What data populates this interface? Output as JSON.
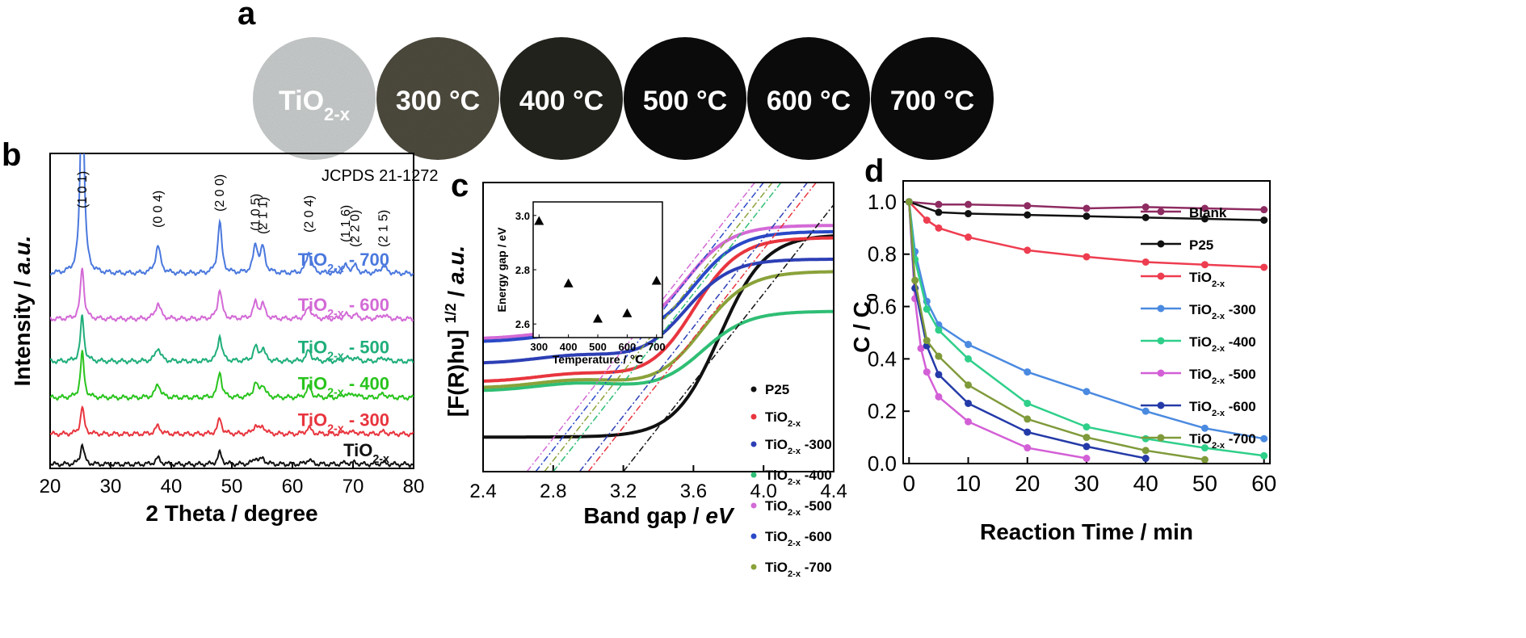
{
  "panel_a": {
    "letter": "a",
    "samples": [
      {
        "label": "TiO",
        "sub": "2-x",
        "color": "#c8cbcb"
      },
      {
        "label": "300 °C",
        "sub": "",
        "color": "#4d4a3d"
      },
      {
        "label": "400 °C",
        "sub": "",
        "color": "#22231c"
      },
      {
        "label": "500 °C",
        "sub": "",
        "color": "#0b0b0b"
      },
      {
        "label": "600 °C",
        "sub": "",
        "color": "#0b0b0b"
      },
      {
        "label": "700 °C",
        "sub": "",
        "color": "#0b0b0b"
      }
    ]
  },
  "chart_data": [
    {
      "panel": "b",
      "type": "line",
      "xlabel": "2 Theta / degree",
      "ylabel": "Intensity / a.u.",
      "xlim": [
        20,
        80
      ],
      "xticks": [
        20,
        30,
        40,
        50,
        60,
        70,
        80
      ],
      "reference": "JCPDS 21-1272",
      "peaks": [
        {
          "label": "(1 0 1)",
          "x": 25.3
        },
        {
          "label": "(0 0 4)",
          "x": 37.8
        },
        {
          "label": "(2 0 0)",
          "x": 48.0
        },
        {
          "label": "(1 0 5)",
          "x": 53.9
        },
        {
          "label": "(2 1 1)",
          "x": 55.1
        },
        {
          "label": "(2 0 4)",
          "x": 62.7
        },
        {
          "label": "(1 1 6)",
          "x": 68.8
        },
        {
          "label": "(2 2 0)",
          "x": 70.3
        },
        {
          "label": "(2 1 5)",
          "x": 75.0
        }
      ],
      "series": [
        {
          "name": "TiO",
          "sub": "2-x",
          "suffix": "",
          "color": "#111111",
          "offset": 0.0,
          "scale": 0.45
        },
        {
          "name": "TiO",
          "sub": "2-x",
          "suffix": "- 300",
          "color": "#e8353e",
          "offset": 1.0,
          "scale": 0.6
        },
        {
          "name": "TiO",
          "sub": "2-x",
          "suffix": "- 400",
          "color": "#29c41d",
          "offset": 2.2,
          "scale": 1.0
        },
        {
          "name": "TiO",
          "sub": "2-x",
          "suffix": "- 500",
          "color": "#1fae7a",
          "offset": 3.4,
          "scale": 1.0
        },
        {
          "name": "TiO",
          "sub": "2-x",
          "suffix": "- 600",
          "color": "#d36ad6",
          "offset": 4.8,
          "scale": 1.15
        },
        {
          "name": "TiO",
          "sub": "2-x",
          "suffix": "- 700",
          "color": "#4a78dd",
          "offset": 6.3,
          "scale": 2.0
        }
      ]
    },
    {
      "panel": "c",
      "type": "line",
      "xlabel": "Band gap / eV",
      "ylabel": "[F(R)hυ]^1/2 / a.u.",
      "xlim": [
        2.4,
        4.4
      ],
      "xticks": [
        2.4,
        2.8,
        3.2,
        3.6,
        4.0,
        4.4
      ],
      "series": [
        {
          "name": "P25",
          "sub": "",
          "suffix": "",
          "color": "#111111",
          "base": 0.6,
          "top": 7.2,
          "edge": 3.4,
          "intercept": 3.2
        },
        {
          "name": "TiO",
          "sub": "2-x",
          "suffix": "",
          "color": "#e8353e",
          "base": 2.4,
          "top": 7.1,
          "edge": 3.25,
          "intercept": 3.0
        },
        {
          "name": "TiO",
          "sub": "2-x",
          "suffix": "-300",
          "color": "#2d3fb5",
          "base": 3.0,
          "top": 6.4,
          "edge": 3.2,
          "intercept": 2.95
        },
        {
          "name": "TiO",
          "sub": "2-x",
          "suffix": "-400",
          "color": "#2fbe74",
          "base": 2.1,
          "top": 4.7,
          "edge": 3.3,
          "intercept": 2.8
        },
        {
          "name": "TiO",
          "sub": "2-x",
          "suffix": "-500",
          "color": "#d36ad6",
          "base": 3.8,
          "top": 7.5,
          "edge": 3.2,
          "intercept": 2.65
        },
        {
          "name": "TiO",
          "sub": "2-x",
          "suffix": "-600",
          "color": "#2a49c8",
          "base": 3.7,
          "top": 7.3,
          "edge": 3.25,
          "intercept": 2.7
        },
        {
          "name": "TiO",
          "sub": "2-x",
          "suffix": "-700",
          "color": "#8aa23a",
          "base": 2.2,
          "top": 6.0,
          "edge": 3.3,
          "intercept": 2.75
        }
      ],
      "inset": {
        "type": "scatter",
        "xlabel": "Temperature / ℃",
        "ylabel": "Energy gap / eV",
        "xlim": [
          280,
          720
        ],
        "ylim": [
          3.05,
          2.55
        ],
        "xticks": [
          300,
          400,
          500,
          600,
          700
        ],
        "yticks": [
          2.6,
          2.8,
          3.0
        ],
        "x": [
          300,
          400,
          500,
          600,
          700
        ],
        "y": [
          2.98,
          2.75,
          2.62,
          2.64,
          2.76
        ]
      }
    },
    {
      "panel": "d",
      "type": "line",
      "xlabel": "Reaction Time / min",
      "ylabel": "C / C",
      "ylabel_sub": "0",
      "xlim": [
        -1,
        61
      ],
      "ylim": [
        0,
        1.08
      ],
      "xticks": [
        0,
        10,
        20,
        30,
        40,
        50,
        60
      ],
      "yticks": [
        0.0,
        0.2,
        0.4,
        0.6,
        0.8,
        1.0
      ],
      "series": [
        {
          "name": "Blank",
          "sub": "",
          "suffix": "",
          "color": "#8e2c62",
          "x": [
            0,
            5,
            10,
            20,
            30,
            40,
            50,
            60
          ],
          "y": [
            1.0,
            0.99,
            0.99,
            0.985,
            0.975,
            0.98,
            0.975,
            0.97
          ]
        },
        {
          "name": "P25",
          "sub": "",
          "suffix": "",
          "color": "#111111",
          "x": [
            0,
            5,
            10,
            20,
            30,
            40,
            50,
            60
          ],
          "y": [
            1.0,
            0.96,
            0.955,
            0.95,
            0.945,
            0.94,
            0.935,
            0.93
          ]
        },
        {
          "name": "TiO",
          "sub": "2-x",
          "suffix": "",
          "color": "#ee3d50",
          "x": [
            0,
            3,
            5,
            10,
            20,
            30,
            40,
            50,
            60
          ],
          "y": [
            1.0,
            0.93,
            0.9,
            0.865,
            0.815,
            0.79,
            0.77,
            0.76,
            0.75
          ]
        },
        {
          "name": "TiO",
          "sub": "2-x",
          "suffix": "-300",
          "color": "#4a8ae0",
          "x": [
            0,
            1,
            3,
            5,
            10,
            20,
            30,
            40,
            50,
            60
          ],
          "y": [
            1.0,
            0.81,
            0.62,
            0.53,
            0.455,
            0.35,
            0.275,
            0.2,
            0.135,
            0.095
          ]
        },
        {
          "name": "TiO",
          "sub": "2-x",
          "suffix": "-400",
          "color": "#2fcf8a",
          "x": [
            0,
            1,
            3,
            5,
            10,
            20,
            30,
            40,
            50,
            60
          ],
          "y": [
            1.0,
            0.78,
            0.59,
            0.51,
            0.4,
            0.23,
            0.14,
            0.095,
            0.06,
            0.03
          ]
        },
        {
          "name": "TiO",
          "sub": "2-x",
          "suffix": "-500",
          "color": "#d35fd6",
          "x": [
            0,
            1,
            2,
            3,
            5,
            10,
            20,
            30
          ],
          "y": [
            1.0,
            0.63,
            0.44,
            0.35,
            0.255,
            0.16,
            0.06,
            0.02
          ]
        },
        {
          "name": "TiO",
          "sub": "2-x",
          "suffix": "-600",
          "color": "#243aa8",
          "x": [
            0,
            1,
            3,
            5,
            10,
            20,
            30,
            40
          ],
          "y": [
            1.0,
            0.67,
            0.45,
            0.34,
            0.23,
            0.12,
            0.065,
            0.02
          ]
        },
        {
          "name": "TiO",
          "sub": "2-x",
          "suffix": "-700",
          "color": "#7f9a3a",
          "x": [
            0,
            1,
            3,
            5,
            10,
            20,
            30,
            40,
            50
          ],
          "y": [
            1.0,
            0.7,
            0.47,
            0.41,
            0.3,
            0.17,
            0.1,
            0.05,
            0.015
          ]
        }
      ]
    }
  ]
}
